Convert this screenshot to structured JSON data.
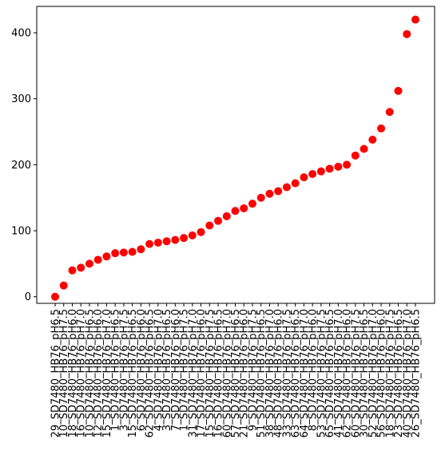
{
  "chart_data": {
    "type": "scatter",
    "title": "",
    "xlabel": "",
    "ylabel": "",
    "ylim": [
      -10,
      440
    ],
    "yticks": [
      0,
      100,
      200,
      300,
      400
    ],
    "grid": false,
    "marker_color": "#ff0000",
    "x": [
      "29_SD7480_HB76_pH6.5",
      "10_SD7480_HB76_pH7.5",
      "18_SD7480_HB76_pH6.0",
      "16_SD7480_HB76_pH7.0",
      "10_SD7480_HB76_pH6.5",
      "12_SD7480_HB76_pH6.0",
      "15_SD7480_HB76_pH7.0",
      "1_SD7480_HB76_pH6.5",
      "3_SD7480_HB76_pH7.5",
      "15_SD7480_HB76_pH6.5",
      "6_SD7480_HB76_pH6.0",
      "62_SD7480_HB76_pH6.5",
      "4_SD7480_HB76_pH7.0",
      "3_SD7480_HB76_pH6.5",
      "7_SD7480_HB76_pH6.0",
      "1_SD7480_HB76_pH7.5",
      "31_SD7480_HB76_pH7.0",
      "17_SD7480_HB76_pH6.0",
      "15_SD7480_HB76_pH7.5",
      "16_SD7480_HB76_pH6.5",
      "60_SD7480_HB76_pH7.0",
      "57_SD7480_HB76_pH6.5",
      "21_SD7480_HB76_pH6.0",
      "9_SD7480_HB76_pH7.5",
      "51_SD7480_HB76_pH6.5",
      "38_SD7480_HB76_pH7.0",
      "48_SD7480_HB76_pH6.0",
      "33_SD7480_HB76_pH7.5",
      "63_SD7480_HB76_pH6.5",
      "64_SD7480_HB76_pH7.0",
      "8_SD7480_HB76_pH6.0",
      "53_SD7480_HB76_pH7.5",
      "65_SD7480_HB76_pH6.5",
      "41_SD7480_HB76_pH7.0",
      "62_SD7480_HB76_pH6.0",
      "60_SD7480_HB76_pH7.5",
      "30_SD7480_HB76_pH6.5",
      "52_SD7480_HB76_pH7.0",
      "56_SD7480_HB76_pH6.0",
      "18_SD7480_HB76_pH7.5",
      "23_SD7480_HB76_pH6.5",
      "40_SD7480_HB76_pH7.0",
      "26_SD7480_HB76_pH6.5"
    ],
    "y": [
      0,
      17,
      40,
      44,
      50,
      56,
      61,
      66,
      67,
      68,
      72,
      80,
      82,
      84,
      86,
      89,
      93,
      98,
      108,
      115,
      122,
      130,
      134,
      141,
      150,
      156,
      160,
      166,
      172,
      181,
      186,
      190,
      194,
      197,
      200,
      214,
      224,
      238,
      255,
      280,
      312,
      398,
      420
    ]
  }
}
